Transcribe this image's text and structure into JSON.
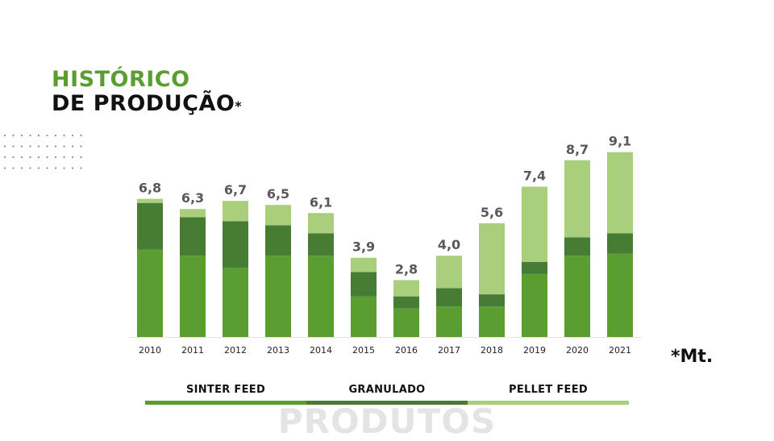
{
  "title": {
    "line1": "HISTÓRICO",
    "line2": "DE PRODUÇÃO",
    "asterisk": "*"
  },
  "unit_note": "*Mt.",
  "footer_word": "PRODUTOS",
  "colors": {
    "sinter_feed": "#5a9e32",
    "granulado": "#477c34",
    "pellet_feed": "#a9cf7d",
    "axis": "#e3e3e3",
    "value_label": "#595959"
  },
  "legend": [
    {
      "label": "SINTER FEED",
      "color": "#5a9e32"
    },
    {
      "label": "GRANULADO",
      "color": "#477c34"
    },
    {
      "label": "PELLET FEED",
      "color": "#a9cf7d"
    }
  ],
  "chart_data": {
    "type": "bar",
    "stacked": true,
    "categories": [
      "2010",
      "2011",
      "2012",
      "2013",
      "2014",
      "2015",
      "2016",
      "2017",
      "2018",
      "2019",
      "2020",
      "2021"
    ],
    "totals_labels": [
      "6,8",
      "6,3",
      "6,7",
      "6,5",
      "6,1",
      "3,9",
      "2,8",
      "4,0",
      "5,6",
      "7,4",
      "8,7",
      "9,1"
    ],
    "series": [
      {
        "name": "SINTER FEED",
        "values": [
          4.3,
          4.0,
          3.4,
          4.0,
          4.0,
          2.0,
          1.4,
          1.5,
          1.5,
          3.1,
          4.0,
          4.1
        ]
      },
      {
        "name": "GRANULADO",
        "values": [
          2.3,
          1.9,
          2.3,
          1.5,
          1.1,
          1.2,
          0.6,
          0.9,
          0.6,
          0.6,
          0.9,
          1.0
        ]
      },
      {
        "name": "PELLET FEED",
        "values": [
          0.2,
          0.4,
          1.0,
          1.0,
          1.0,
          0.7,
          0.8,
          1.6,
          3.5,
          3.7,
          3.8,
          4.0
        ]
      }
    ],
    "ylim": [
      0,
      9.5
    ],
    "grid": false,
    "title": "",
    "xlabel": "",
    "ylabel": ""
  }
}
